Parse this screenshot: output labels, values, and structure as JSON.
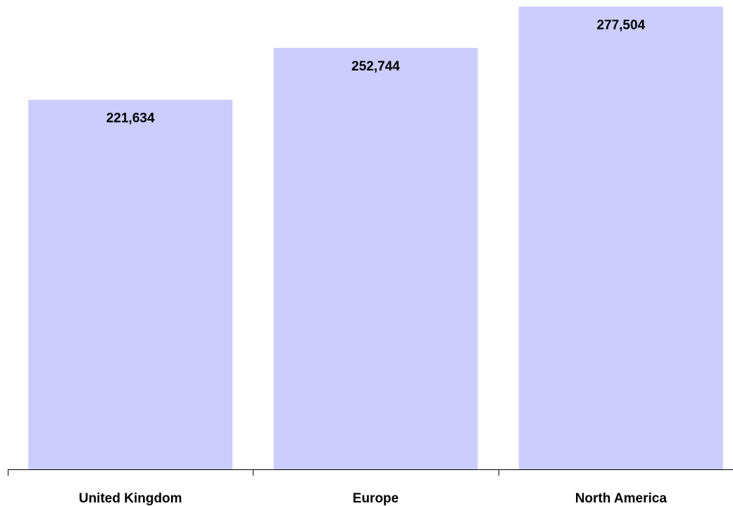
{
  "chart_data": {
    "type": "bar",
    "categories": [
      "United Kingdom",
      "Europe",
      "North America"
    ],
    "values": [
      221634,
      252744,
      277504
    ],
    "value_labels": [
      "221,634",
      "252,744",
      "277,504"
    ],
    "title": "",
    "xlabel": "",
    "ylabel": "",
    "ylim": [
      0,
      290000
    ],
    "grid": false,
    "legend": "none",
    "colors": {
      "bar": "#ccccff",
      "text": "#000000",
      "axis": "#000000"
    }
  }
}
